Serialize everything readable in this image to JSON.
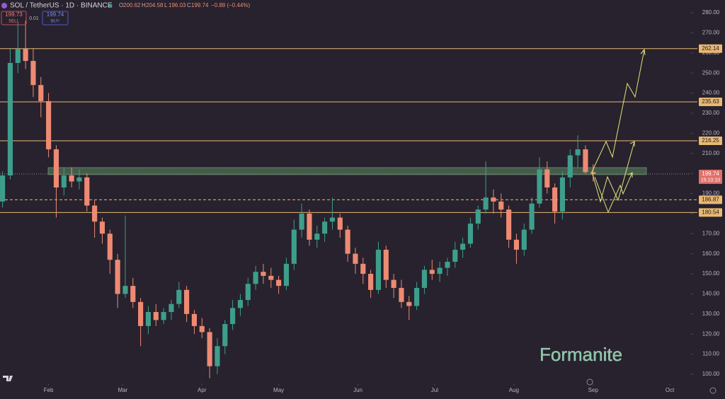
{
  "chart_data": {
    "type": "candlestick",
    "title": "SOL / TetherUS · 1D · BINANCE",
    "ohlc_legend": [
      {
        "label": "O",
        "value": 200.62
      },
      {
        "label": "H",
        "value": 204.58
      },
      {
        "label": "L",
        "value": 196.03
      },
      {
        "label": "C",
        "value": 199.74
      }
    ],
    "change": "−0.88 (−0.44%)",
    "sell": {
      "price": 199.73,
      "label": "SELL"
    },
    "spread": 0.01,
    "buy": {
      "price": 199.74,
      "label": "BUY"
    },
    "watermark": "Formanite",
    "up_color": "#3e9e8c",
    "down_color": "#ee8a73",
    "xlim": [
      0,
      270
    ],
    "xticks": [
      {
        "value": 19,
        "label": "Feb"
      },
      {
        "value": 48,
        "label": "Mar"
      },
      {
        "value": 79,
        "label": "Apr"
      },
      {
        "value": 109,
        "label": "May"
      },
      {
        "value": 140,
        "label": "Jun"
      },
      {
        "value": 170,
        "label": "Jul"
      },
      {
        "value": 201,
        "label": "Aug"
      },
      {
        "value": 232,
        "label": "Sep"
      },
      {
        "value": 262,
        "label": "Oct"
      }
    ],
    "ylim": [
      95.43,
      286.34
    ],
    "yticks": [
      {
        "value": 280,
        "label": "280.00"
      },
      {
        "value": 270,
        "label": "270.00"
      },
      {
        "value": 260,
        "label": "260.00"
      },
      {
        "value": 250,
        "label": "250.00"
      },
      {
        "value": 240,
        "label": "240.00"
      },
      {
        "value": 230,
        "label": "230.00"
      },
      {
        "value": 220,
        "label": "220.00"
      },
      {
        "value": 210,
        "label": "210.00"
      },
      {
        "value": 200,
        "label": "200.00"
      },
      {
        "value": 190,
        "label": "190.00"
      },
      {
        "value": 180,
        "label": "180.00"
      },
      {
        "value": 170,
        "label": "170.00"
      },
      {
        "value": 160,
        "label": "160.00"
      },
      {
        "value": 150,
        "label": "150.00"
      },
      {
        "value": 140,
        "label": "140.00"
      },
      {
        "value": 130,
        "label": "130.00"
      },
      {
        "value": 120,
        "label": "120.00"
      },
      {
        "value": 110,
        "label": "110.00"
      },
      {
        "value": 100,
        "label": "100.00"
      }
    ],
    "x": [
      1,
      4,
      7,
      10,
      13,
      16,
      19,
      22,
      25,
      28,
      31,
      34,
      37,
      40,
      43,
      46,
      49,
      52,
      55,
      58,
      61,
      64,
      67,
      70,
      73,
      76,
      79,
      82,
      85,
      88,
      91,
      94,
      97,
      100,
      103,
      106,
      109,
      112,
      115,
      118,
      121,
      124,
      127,
      130,
      133,
      136,
      139,
      142,
      145,
      148,
      151,
      154,
      157,
      160,
      163,
      166,
      169,
      172,
      175,
      178,
      181,
      184,
      187,
      190,
      193,
      196,
      199,
      202,
      205,
      208,
      211,
      214,
      217,
      220,
      223,
      226,
      229,
      232
    ],
    "ohlc": [
      [
        186,
        201,
        183,
        199
      ],
      [
        199,
        262,
        197,
        255
      ],
      [
        255,
        275,
        250,
        262
      ],
      [
        262,
        276,
        252,
        256
      ],
      [
        256,
        262,
        238,
        244
      ],
      [
        244,
        248,
        228,
        236
      ],
      [
        236,
        240,
        208,
        212
      ],
      [
        212,
        214,
        178,
        193
      ],
      [
        193,
        203,
        189,
        199
      ],
      [
        199,
        203,
        193,
        196
      ],
      [
        196,
        202,
        192,
        198
      ],
      [
        198,
        200,
        181,
        184
      ],
      [
        184,
        187,
        168,
        176
      ],
      [
        176,
        178,
        165,
        170
      ],
      [
        170,
        172,
        150,
        157
      ],
      [
        157,
        160,
        133,
        140
      ],
      [
        140,
        179,
        138,
        144
      ],
      [
        144,
        148,
        133,
        136
      ],
      [
        136,
        138,
        114,
        124
      ],
      [
        124,
        134,
        120,
        131
      ],
      [
        131,
        135,
        124,
        127
      ],
      [
        127,
        133,
        125,
        131
      ],
      [
        131,
        137,
        127,
        135
      ],
      [
        135,
        146,
        133,
        142
      ],
      [
        142,
        144,
        126,
        130
      ],
      [
        130,
        132,
        120,
        124
      ],
      [
        124,
        128,
        118,
        121
      ],
      [
        121,
        123,
        98,
        104
      ],
      [
        104,
        118,
        100,
        114
      ],
      [
        114,
        127,
        110,
        125
      ],
      [
        125,
        137,
        122,
        133
      ],
      [
        133,
        140,
        129,
        137
      ],
      [
        137,
        148,
        134,
        145
      ],
      [
        145,
        154,
        142,
        151
      ],
      [
        151,
        155,
        145,
        149
      ],
      [
        149,
        153,
        143,
        147
      ],
      [
        147,
        149,
        140,
        144
      ],
      [
        144,
        158,
        142,
        155
      ],
      [
        155,
        177,
        152,
        172
      ],
      [
        172,
        185,
        168,
        180
      ],
      [
        180,
        182,
        164,
        167
      ],
      [
        167,
        174,
        163,
        170
      ],
      [
        170,
        178,
        166,
        176
      ],
      [
        176,
        188,
        172,
        178
      ],
      [
        178,
        180,
        168,
        172
      ],
      [
        172,
        174,
        156,
        160
      ],
      [
        160,
        163,
        150,
        155
      ],
      [
        155,
        158,
        145,
        150
      ],
      [
        150,
        152,
        138,
        142
      ],
      [
        142,
        166,
        140,
        162
      ],
      [
        162,
        164,
        143,
        147
      ],
      [
        147,
        150,
        138,
        143
      ],
      [
        143,
        147,
        133,
        136
      ],
      [
        136,
        139,
        127,
        134
      ],
      [
        134,
        146,
        132,
        143
      ],
      [
        143,
        154,
        140,
        152
      ],
      [
        152,
        157,
        147,
        150
      ],
      [
        150,
        156,
        146,
        153
      ],
      [
        153,
        158,
        149,
        156
      ],
      [
        156,
        166,
        153,
        162
      ],
      [
        162,
        168,
        158,
        165
      ],
      [
        165,
        178,
        163,
        175
      ],
      [
        175,
        184,
        172,
        182
      ],
      [
        182,
        206,
        180,
        188
      ],
      [
        188,
        192,
        180,
        186
      ],
      [
        186,
        190,
        178,
        182
      ],
      [
        182,
        184,
        163,
        167
      ],
      [
        167,
        170,
        155,
        162
      ],
      [
        162,
        175,
        159,
        172
      ],
      [
        172,
        188,
        170,
        185
      ],
      [
        185,
        208,
        183,
        202
      ],
      [
        202,
        206,
        190,
        193
      ],
      [
        193,
        195,
        175,
        181
      ],
      [
        181,
        201,
        177,
        198
      ],
      [
        198,
        212,
        193,
        209
      ],
      [
        209,
        219,
        203,
        212
      ],
      [
        212,
        214,
        200,
        200.6
      ],
      [
        200.62,
        204.58,
        196.03,
        199.74
      ]
    ],
    "levels": [
      {
        "value": 262.14,
        "style": "solid"
      },
      {
        "value": 235.63,
        "style": "solid"
      },
      {
        "value": 216.25,
        "style": "solid"
      },
      {
        "value": 186.87,
        "style": "dashed"
      },
      {
        "value": 180.54,
        "style": "solid"
      }
    ],
    "level_color": "#e9b873",
    "zone": [
      199.4,
      202.9
    ],
    "zone_color": "#5f8a63",
    "last_price": 199.74,
    "countdown": "15:10:10"
  }
}
